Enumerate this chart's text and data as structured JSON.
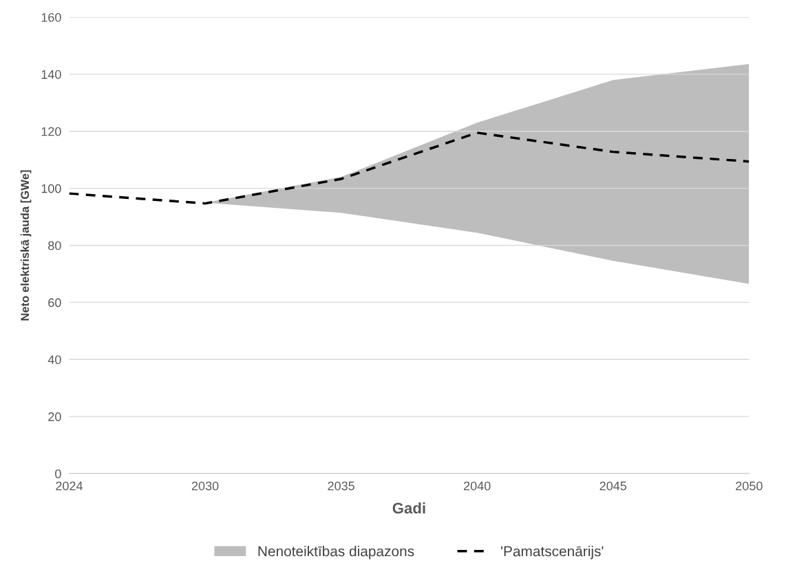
{
  "chart_data": {
    "type": "line",
    "xlabel": "Gadi",
    "ylabel": "Neto elektriskā jauda [GWe]",
    "categories": [
      "2024",
      "2030",
      "2035",
      "2040",
      "2045",
      "2050"
    ],
    "series": [
      {
        "name": "Nenoteiktības diapazons",
        "type": "area",
        "color": "#bdbdbd",
        "values": [
          null,
          null,
          null,
          null,
          null,
          null
        ],
        "lower": [
          null,
          95,
          91.4,
          84.4,
          74.6,
          66.5
        ],
        "upper": [
          null,
          95,
          104,
          123,
          138,
          143.6
        ]
      },
      {
        "name": "'Pamatscenārijs'",
        "color": "#000000",
        "line_style": "dashed",
        "values": [
          98.2,
          94.7,
          103.3,
          119.5,
          112.8,
          109.4
        ]
      }
    ],
    "ylim": [
      0,
      160
    ],
    "yticks": [
      0,
      20,
      40,
      60,
      80,
      100,
      120,
      140,
      160
    ],
    "grid": "y",
    "legend": "bottom"
  }
}
